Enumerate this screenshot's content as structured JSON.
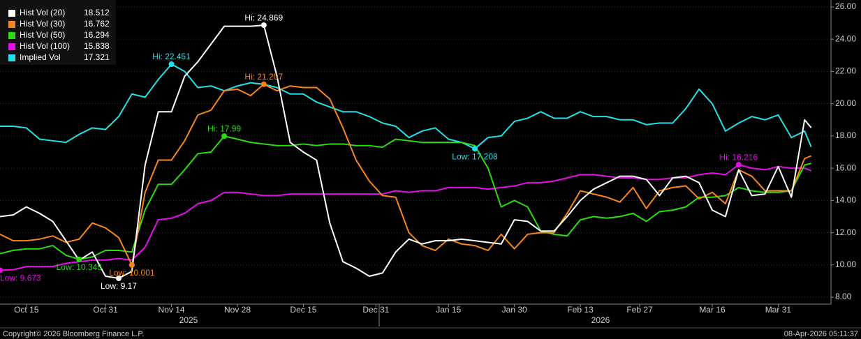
{
  "chart_data": {
    "type": "line",
    "x": [
      0,
      2,
      4,
      6,
      8,
      10,
      12,
      14,
      16,
      18,
      20,
      22,
      24,
      26,
      28,
      30,
      32,
      34,
      36,
      38,
      40,
      42,
      44,
      46,
      48,
      50,
      52,
      54,
      56,
      58,
      60,
      62,
      64,
      66,
      68,
      70,
      72,
      74,
      76,
      78,
      80,
      82,
      84,
      86,
      88,
      90,
      92,
      94,
      96,
      98,
      100,
      102,
      104,
      106,
      108,
      110,
      112,
      114,
      116,
      118,
      120,
      122,
      123
    ],
    "xlim": [
      0,
      126
    ],
    "xticks": [
      {
        "value": 4,
        "label": "Oct 15"
      },
      {
        "value": 16,
        "label": "Oct 31"
      },
      {
        "value": 26,
        "label": "Nov 14"
      },
      {
        "value": 36,
        "label": "Nov 28"
      },
      {
        "value": 46,
        "label": "Dec 15"
      },
      {
        "value": 57,
        "label": "Dec 31"
      },
      {
        "value": 68,
        "label": "Jan 15"
      },
      {
        "value": 78,
        "label": "Jan 30"
      },
      {
        "value": 88,
        "label": "Feb 13"
      },
      {
        "value": 97,
        "label": "Feb 27"
      },
      {
        "value": 108,
        "label": "Mar 16"
      },
      {
        "value": 118,
        "label": "Mar 31"
      }
    ],
    "x_groups": [
      "2025",
      "2026"
    ],
    "ylim": [
      7.57,
      26.43
    ],
    "yticks": [
      {
        "value": 8,
        "label": "8.00"
      },
      {
        "value": 10,
        "label": "10.00"
      },
      {
        "value": 12,
        "label": "12.00"
      },
      {
        "value": 14,
        "label": "14.00"
      },
      {
        "value": 16,
        "label": "16.00"
      },
      {
        "value": 18,
        "label": "18.00"
      },
      {
        "value": 20,
        "label": "20.00"
      },
      {
        "value": 22,
        "label": "22.00"
      },
      {
        "value": 24,
        "label": "24.00"
      },
      {
        "value": 26,
        "label": "26.00"
      }
    ],
    "grid": true,
    "legend": "top-left",
    "series": [
      {
        "name": "Hist Vol (20)",
        "color": "#ffffff",
        "values": [
          13.0,
          13.1,
          13.6,
          13.2,
          12.7,
          11.5,
          10.3,
          10.8,
          9.3,
          9.17,
          9.6,
          16.2,
          19.5,
          19.5,
          21.7,
          22.6,
          23.7,
          24.8,
          24.8,
          24.8,
          24.869,
          21.7,
          17.6,
          17.0,
          16.5,
          12.6,
          10.2,
          9.8,
          9.3,
          9.5,
          10.8,
          11.6,
          11.3,
          11.5,
          11.5,
          11.6,
          11.5,
          11.4,
          11.3,
          12.8,
          12.7,
          12.1,
          12.1,
          13.0,
          14.0,
          14.7,
          15.1,
          15.5,
          15.5,
          15.3,
          14.3,
          15.4,
          15.5,
          15.1,
          13.4,
          13.0,
          15.9,
          14.3,
          14.4,
          16.1,
          14.2,
          19.0,
          18.512
        ]
      },
      {
        "name": "Hist Vol (30)",
        "color": "#f7861c",
        "values": [
          11.9,
          11.5,
          11.5,
          11.6,
          11.8,
          11.4,
          11.6,
          12.6,
          12.3,
          11.7,
          10.001,
          14.5,
          16.5,
          16.5,
          17.7,
          19.3,
          19.6,
          20.8,
          20.9,
          20.5,
          21.207,
          20.8,
          21.1,
          21.0,
          21.0,
          20.3,
          18.5,
          16.5,
          15.2,
          14.3,
          14.2,
          12.0,
          11.2,
          10.9,
          11.6,
          11.3,
          11.2,
          10.9,
          11.9,
          11.0,
          11.9,
          12.0,
          12.0,
          13.2,
          14.6,
          14.4,
          14.2,
          13.9,
          14.8,
          13.5,
          14.6,
          14.8,
          14.9,
          14.1,
          14.5,
          13.8,
          15.9,
          15.5,
          14.6,
          14.6,
          14.6,
          16.6,
          16.762
        ]
      },
      {
        "name": "Hist Vol (50)",
        "color": "#2bdc0f",
        "values": [
          10.7,
          10.9,
          11.0,
          11.0,
          11.2,
          10.6,
          10.345,
          10.5,
          10.9,
          10.9,
          10.8,
          13.4,
          15.0,
          15.0,
          15.9,
          16.9,
          17.0,
          17.99,
          17.8,
          17.6,
          17.5,
          17.4,
          17.4,
          17.5,
          17.4,
          17.5,
          17.5,
          17.4,
          17.4,
          17.3,
          17.8,
          17.7,
          17.6,
          17.6,
          17.6,
          17.6,
          17.4,
          16.0,
          13.6,
          14.0,
          13.6,
          12.1,
          11.9,
          11.8,
          12.8,
          13.0,
          12.9,
          13.0,
          13.2,
          12.7,
          13.3,
          13.4,
          13.6,
          14.2,
          14.2,
          14.3,
          14.8,
          14.6,
          14.5,
          14.5,
          14.6,
          16.2,
          16.294
        ]
      },
      {
        "name": "Hist Vol (100)",
        "color": "#e60ee6",
        "values": [
          9.673,
          9.7,
          9.9,
          9.9,
          9.9,
          10.1,
          10.2,
          10.3,
          10.3,
          10.4,
          10.3,
          11.1,
          12.8,
          12.9,
          13.2,
          13.8,
          14.0,
          14.5,
          14.5,
          14.4,
          14.3,
          14.3,
          14.4,
          14.4,
          14.4,
          14.4,
          14.4,
          14.4,
          14.4,
          14.4,
          14.6,
          14.5,
          14.6,
          14.6,
          14.8,
          14.8,
          14.8,
          14.7,
          14.8,
          14.9,
          15.1,
          15.1,
          15.2,
          15.4,
          15.6,
          15.6,
          15.5,
          15.4,
          15.4,
          15.3,
          15.3,
          15.4,
          15.4,
          15.6,
          15.7,
          15.6,
          16.216,
          16.0,
          15.9,
          16.1,
          16.0,
          16.0,
          15.838
        ]
      },
      {
        "name": "Implied Vol",
        "color": "#22e0e8",
        "values": [
          18.6,
          18.6,
          18.5,
          17.8,
          17.7,
          17.6,
          18.1,
          18.5,
          18.4,
          19.2,
          20.6,
          20.4,
          21.5,
          22.451,
          22.0,
          21.0,
          21.1,
          20.8,
          21.1,
          21.3,
          21.2,
          21.0,
          20.6,
          20.6,
          20.1,
          19.8,
          19.5,
          19.5,
          19.2,
          18.8,
          18.6,
          17.9,
          18.3,
          18.5,
          17.8,
          17.6,
          17.208,
          17.9,
          18.0,
          18.9,
          19.1,
          19.5,
          19.1,
          19.1,
          19.5,
          19.2,
          19.2,
          19.0,
          19.0,
          18.7,
          18.8,
          18.8,
          19.7,
          20.9,
          20.0,
          18.3,
          18.8,
          19.2,
          19.0,
          19.3,
          17.9,
          18.3,
          17.321
        ]
      }
    ],
    "annotations": [
      {
        "label": "Hi: 24.869",
        "x": 40,
        "y": 24.869,
        "color": "#ffffff",
        "placement": "above"
      },
      {
        "label": "Low: 9.17",
        "x": 18,
        "y": 9.17,
        "color": "#ffffff",
        "placement": "below"
      },
      {
        "label": "Hi: 21.207",
        "x": 40,
        "y": 21.207,
        "color": "#f7861c",
        "placement": "above"
      },
      {
        "label": "Low: 10.001",
        "x": 20,
        "y": 10.001,
        "color": "#f7861c",
        "placement": "below"
      },
      {
        "label": "Hi: 17.99",
        "x": 34,
        "y": 17.99,
        "color": "#2bdc0f",
        "placement": "above"
      },
      {
        "label": "Low: 10.345",
        "x": 12,
        "y": 10.345,
        "color": "#2bdc0f",
        "placement": "below"
      },
      {
        "label": "Hi: 16.216",
        "x": 112,
        "y": 16.216,
        "color": "#e60ee6",
        "placement": "above"
      },
      {
        "label": "Low: 9.673",
        "x": 0,
        "y": 9.673,
        "color": "#e60ee6",
        "placement": "below"
      },
      {
        "label": "Hi: 22.451",
        "x": 26,
        "y": 22.451,
        "color": "#22e0e8",
        "placement": "above"
      },
      {
        "label": "Low: 17.208",
        "x": 72,
        "y": 17.208,
        "color": "#22e0e8",
        "placement": "below"
      }
    ],
    "footer_left": "Copyright© 2026 Bloomberg Finance L.P.",
    "footer_right": "08-Apr-2026 05:11:37"
  }
}
